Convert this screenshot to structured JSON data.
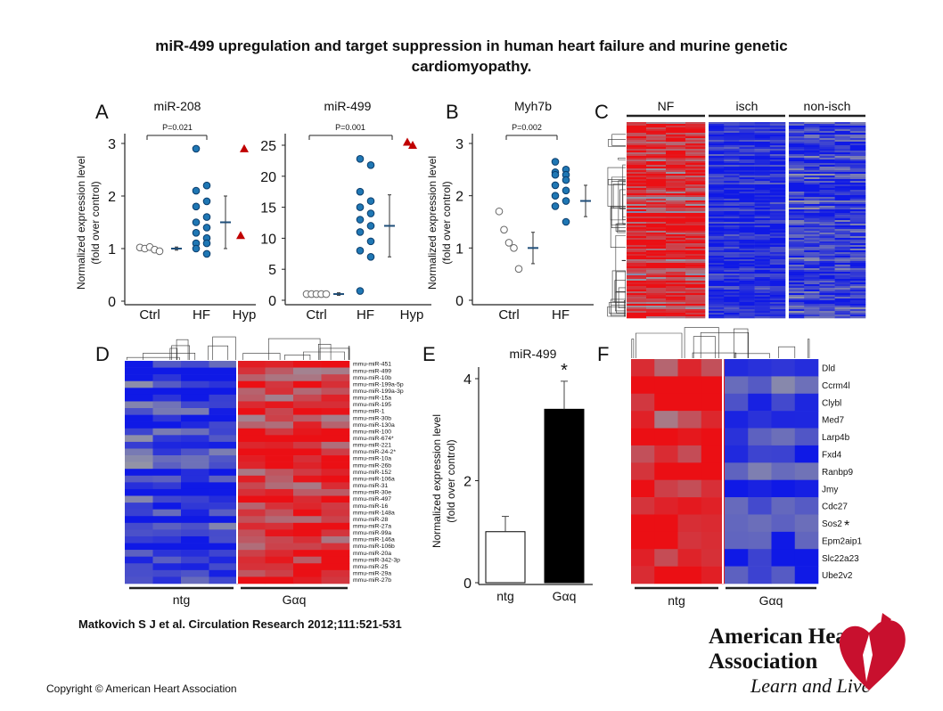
{
  "title": [
    "miR-499 upregulation and target suppression in human heart failure and murine genetic",
    "cardiomyopathy."
  ],
  "panel_letters": [
    "A",
    "B",
    "C",
    "D",
    "E",
    "F"
  ],
  "scatter": [
    {
      "title": "miR-208",
      "pvalue": "P=0.021",
      "ylabel": [
        "Normalized expression level",
        "(fold over control)"
      ],
      "ylim": [
        0,
        3
      ],
      "yticks": [
        0,
        1,
        2,
        3
      ],
      "groups": [
        {
          "name": "Ctrl",
          "marker": "circle-open",
          "color": "#ffffff",
          "points": [
            1.02,
            1.0,
            1.03,
            0.98,
            0.95
          ],
          "mean": 1.0,
          "err": 0.03
        },
        {
          "name": "HF",
          "marker": "circle",
          "color": "#1f77b4",
          "points": [
            2.9,
            2.2,
            2.1,
            1.9,
            1.8,
            1.6,
            1.5,
            1.4,
            1.3,
            1.2,
            1.1,
            1.1,
            1.0,
            0.9
          ],
          "mean": 1.5,
          "err": 0.5
        },
        {
          "name": "Hyp",
          "marker": "triangle",
          "color": "#c00000",
          "points": [
            2.9,
            1.25
          ]
        }
      ]
    },
    {
      "title": "miR-499",
      "pvalue": "P=0.001",
      "ylim": [
        0,
        25
      ],
      "yticks": [
        0,
        5,
        10,
        15,
        20,
        25
      ],
      "groups": [
        {
          "name": "Ctrl",
          "marker": "circle-open",
          "color": "#ffffff",
          "points": [
            1.0,
            1.0,
            1.0,
            1.0,
            1.0
          ],
          "mean": 1.0,
          "err": 0.2
        },
        {
          "name": "HF",
          "marker": "circle",
          "color": "#1f77b4",
          "points": [
            22.8,
            21.8,
            17.5,
            16,
            15,
            14,
            13,
            12,
            11,
            9.5,
            8,
            7,
            1.5
          ],
          "mean": 12,
          "err": 5
        },
        {
          "name": "Hyp",
          "marker": "triangle",
          "color": "#c00000",
          "points": [
            25.5,
            25
          ]
        }
      ]
    },
    {
      "title": "Myh7b",
      "pvalue": "P=0.002",
      "ylabel": [
        "Normalized expression level",
        "(fold over control)"
      ],
      "ylim": [
        0,
        3
      ],
      "yticks": [
        0,
        1,
        2,
        3
      ],
      "groups": [
        {
          "name": "Ctrl",
          "marker": "circle-open",
          "color": "#ffffff",
          "points": [
            1.7,
            1.35,
            1.1,
            1.0,
            0.6
          ],
          "mean": 1.0,
          "err": 0.3
        },
        {
          "name": "HF",
          "marker": "circle",
          "color": "#1f77b4",
          "points": [
            2.65,
            2.5,
            2.45,
            2.4,
            2.4,
            2.3,
            2.2,
            2.1,
            2.0,
            1.9,
            1.8,
            1.5
          ],
          "mean": 1.9,
          "err": 0.3
        }
      ]
    }
  ],
  "heatmap_c": {
    "groups": [
      "NF",
      "isch",
      "non-isch"
    ]
  },
  "heatmap_d": {
    "groups": [
      "ntg",
      "Gαq"
    ],
    "rows": [
      "mmu-miR-451",
      "mmu-miR-499",
      "mmu-miR-10b",
      "mmu-miR-199a-5p",
      "mmu-miR-199a-3p",
      "mmu-miR-15a",
      "mmu-miR-195",
      "mmu-miR-1",
      "mmu-miR-30b",
      "mmu-miR-130a",
      "mmu-miR-100",
      "mmu-miR-674*",
      "mmu-miR-221",
      "mmu-miR-24-2*",
      "mmu-miR-10a",
      "mmu-miR-26b",
      "mmu-miR-152",
      "mmu-miR-106a",
      "mmu-miR-31",
      "mmu-miR-30e",
      "mmu-miR-497",
      "mmu-miR-16",
      "mmu-miR-148a",
      "mmu-miR-28",
      "mmu-miR-27a",
      "mmu-miR-99a",
      "mmu-miR-146a",
      "mmu-miR-106b",
      "mmu-miR-20a",
      "mmu-miR-342-3p",
      "mmu-miR-25",
      "mmu-miR-29a",
      "mmu-miR-27b"
    ]
  },
  "bar_e": {
    "title": "miR-499",
    "ylabel": [
      "Normalized expression level",
      "(fold over control)"
    ],
    "categories": [
      "ntg",
      "Gαq"
    ],
    "values": [
      1.0,
      3.4
    ],
    "errors": [
      0.3,
      0.55
    ],
    "colors": [
      "#ffffff",
      "#000000"
    ],
    "ylim": [
      0,
      4
    ],
    "yticks": [
      0,
      2,
      4
    ],
    "annotation": "*"
  },
  "heatmap_f": {
    "groups": [
      "ntg",
      "Gαq"
    ],
    "rows": [
      "Dld",
      "Ccrm4l",
      "Clybl",
      "Med7",
      "Larp4b",
      "Fxd4",
      "Ranbp9",
      "Jmy",
      "Cdc27",
      "Sos2",
      "Epm2aip1",
      "Slc22a23",
      "Ube2v2"
    ],
    "annotation": "*"
  },
  "citation": "Matkovich S J et al. Circulation Research 2012;111:521-531",
  "copyright": "Copyright © American Heart Association",
  "logo": {
    "line1": "American Heart",
    "line2": "Association",
    "tagline": "Learn and Live"
  }
}
